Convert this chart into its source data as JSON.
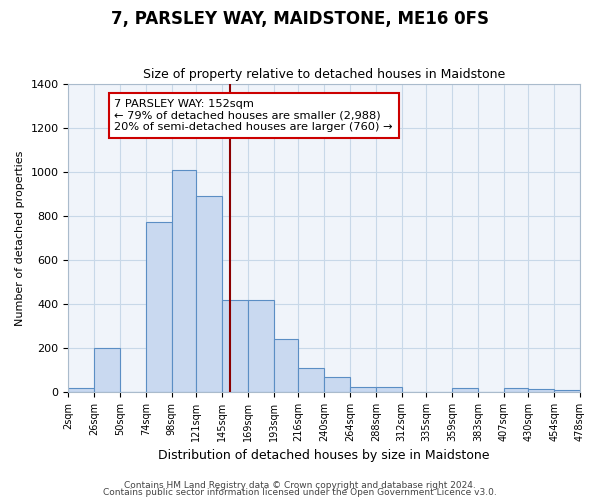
{
  "title": "7, PARSLEY WAY, MAIDSTONE, ME16 0FS",
  "subtitle": "Size of property relative to detached houses in Maidstone",
  "xlabel": "Distribution of detached houses by size in Maidstone",
  "ylabel": "Number of detached properties",
  "bar_left_edges": [
    2,
    26,
    50,
    74,
    98,
    121,
    145,
    169,
    193,
    216,
    240,
    264,
    288,
    312,
    335,
    359,
    383,
    407,
    430,
    454
  ],
  "bar_widths": [
    24,
    24,
    24,
    24,
    23,
    24,
    24,
    24,
    23,
    24,
    24,
    24,
    24,
    23,
    24,
    24,
    24,
    23,
    24,
    24
  ],
  "bar_heights": [
    20,
    200,
    0,
    770,
    1010,
    890,
    420,
    420,
    240,
    110,
    70,
    25,
    25,
    0,
    0,
    20,
    0,
    20,
    15,
    10
  ],
  "bar_facecolor": "#c9d9f0",
  "bar_edgecolor": "#5b8ec4",
  "vline_x": 152,
  "vline_color": "#8b0000",
  "xlim": [
    2,
    478
  ],
  "ylim": [
    0,
    1400
  ],
  "yticks": [
    0,
    200,
    400,
    600,
    800,
    1000,
    1200,
    1400
  ],
  "xtick_labels": [
    "2sqm",
    "26sqm",
    "50sqm",
    "74sqm",
    "98sqm",
    "121sqm",
    "145sqm",
    "169sqm",
    "193sqm",
    "216sqm",
    "240sqm",
    "264sqm",
    "288sqm",
    "312sqm",
    "335sqm",
    "359sqm",
    "383sqm",
    "407sqm",
    "430sqm",
    "454sqm",
    "478sqm"
  ],
  "xtick_positions": [
    2,
    26,
    50,
    74,
    98,
    121,
    145,
    169,
    193,
    216,
    240,
    264,
    288,
    312,
    335,
    359,
    383,
    407,
    430,
    454,
    478
  ],
  "annotation_title": "7 PARSLEY WAY: 152sqm",
  "annotation_line1": "← 79% of detached houses are smaller (2,988)",
  "annotation_line2": "20% of semi-detached houses are larger (760) →",
  "grid_color": "#c8d8e8",
  "bg_color": "#f0f4fa",
  "footnote1": "Contains HM Land Registry data © Crown copyright and database right 2024.",
  "footnote2": "Contains public sector information licensed under the Open Government Licence v3.0."
}
